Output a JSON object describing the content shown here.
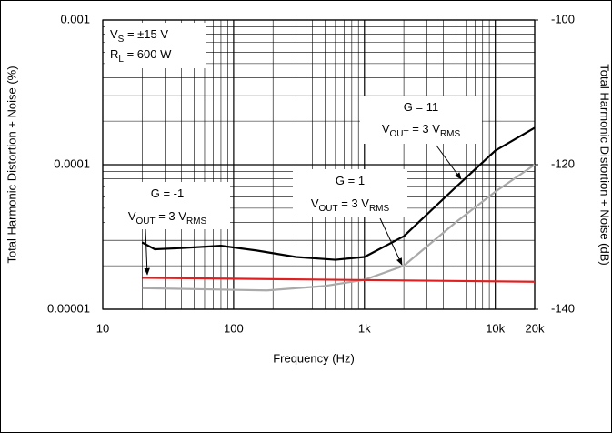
{
  "chart_data": {
    "type": "line",
    "xlabel": "Frequency (Hz)",
    "ylabel": "Total Harmonic Distortion + Noise (%)",
    "y2label": "Total Harmonic Distortion + Noise (dB)",
    "xscale": "log",
    "yscale": "log",
    "grid": true,
    "xlim": [
      10,
      20000
    ],
    "ylim": [
      1e-05,
      0.001
    ],
    "y2lim": [
      -140,
      -100
    ],
    "xticks": [
      {
        "value": 10,
        "label": "10"
      },
      {
        "value": 100,
        "label": "100"
      },
      {
        "value": 1000,
        "label": "1k"
      },
      {
        "value": 10000,
        "label": "10k"
      },
      {
        "value": 20000,
        "label": "20k"
      }
    ],
    "yticks": [
      0.001,
      0.0001,
      1e-05
    ],
    "y2ticks": [
      -100,
      -120,
      -140
    ],
    "series": [
      {
        "color": "#000000",
        "x": [
          20,
          25,
          40,
          80,
          150,
          300,
          600,
          1000,
          2000,
          5000,
          10000,
          20000
        ],
        "values": [
          2.9e-05,
          2.6e-05,
          2.65e-05,
          2.75e-05,
          2.55e-05,
          2.3e-05,
          2.2e-05,
          2.3e-05,
          3.2e-05,
          7e-05,
          0.000125,
          0.00018
        ]
      },
      {
        "color": "#aaaaaa",
        "x": [
          20,
          180,
          500,
          1000,
          2000,
          5000,
          10000,
          20000
        ],
        "values": [
          1.4e-05,
          1.35e-05,
          1.45e-05,
          1.6e-05,
          2e-05,
          4e-05,
          6.5e-05,
          0.0001
        ]
      },
      {
        "color": "#e02020",
        "x": [
          20,
          20000
        ],
        "values": [
          1.65e-05,
          1.55e-05
        ]
      }
    ],
    "annotations": [
      {
        "lines": [
          [
            {
              "text": "V"
            },
            {
              "text": "S",
              "sub": true
            },
            {
              "text": " = ±15 V"
            }
          ],
          [
            {
              "text": "R"
            },
            {
              "text": "L",
              "sub": true
            },
            {
              "text": " = 600 W"
            }
          ]
        ]
      },
      {
        "lines": [
          [
            {
              "text": "G = 11"
            }
          ],
          [
            {
              "text": "V"
            },
            {
              "text": "OUT",
              "sub": true
            },
            {
              "text": " = 3 V"
            },
            {
              "text": "RMS",
              "sub": true
            }
          ]
        ]
      },
      {
        "lines": [
          [
            {
              "text": "G = 1"
            }
          ],
          [
            {
              "text": "V"
            },
            {
              "text": "OUT",
              "sub": true
            },
            {
              "text": " = 3 V"
            },
            {
              "text": "RMS",
              "sub": true
            }
          ]
        ]
      },
      {
        "lines": [
          [
            {
              "text": "G = -1"
            }
          ],
          [
            {
              "text": "V"
            },
            {
              "text": "OUT",
              "sub": true
            },
            {
              "text": " = 3 V"
            },
            {
              "text": "RMS",
              "sub": true
            }
          ]
        ]
      }
    ]
  }
}
